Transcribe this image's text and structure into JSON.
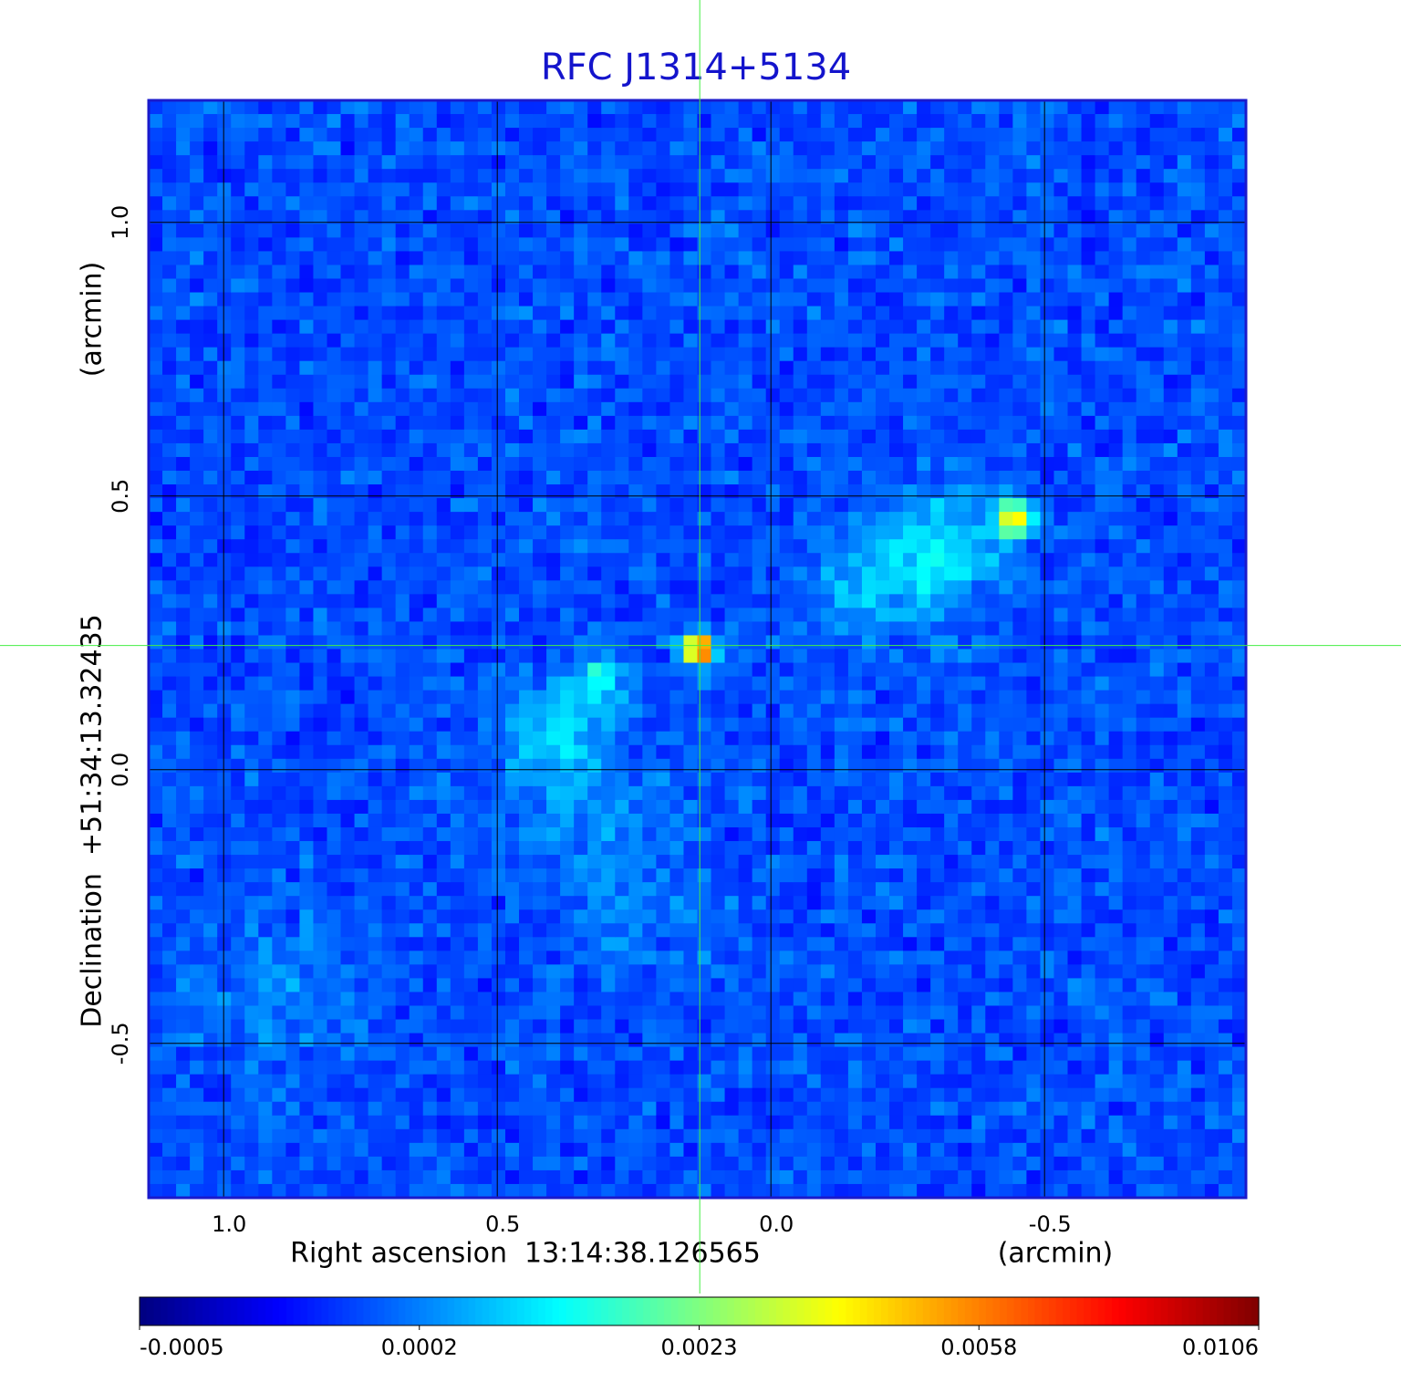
{
  "chart_data": {
    "type": "image",
    "title": "RFC J1314+5134",
    "xlabel": "Right ascension  13:14:38.126565",
    "xunit": "(arcmin)",
    "ylabel": "Declination  +51:34:13.32435",
    "yunit": "(arcmin)",
    "xlim": [
      1.137,
      -0.868
    ],
    "ylim": [
      -0.782,
      1.223
    ],
    "xticks": [
      {
        "value": 1,
        "label": "1.0"
      },
      0.5,
      {
        "value": 0,
        "label": "0.0"
      },
      -0.5
    ],
    "yticks": [
      -0.5,
      {
        "value": 0,
        "label": "0.0"
      },
      0.5,
      {
        "value": 1,
        "label": "1.0"
      }
    ],
    "grid": true,
    "crosshair": {
      "x": 0.13,
      "y": 0.227,
      "color": "#44ee44"
    },
    "colormap": "jet",
    "colorbar": {
      "ticks": [
        -0.0005,
        0.0002,
        0.0023,
        0.0058,
        0.0106
      ]
    }
  }
}
